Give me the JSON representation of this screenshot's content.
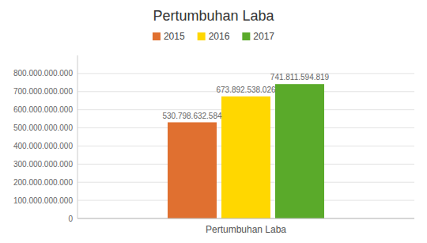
{
  "chart_data": {
    "type": "bar",
    "title": "Pertumbuhan Laba",
    "categories": [
      "Pertumbuhan Laba"
    ],
    "series": [
      {
        "name": "2015",
        "color": "#E07030",
        "values": [
          530798632584
        ],
        "value_labels": [
          "530.798.632.584"
        ]
      },
      {
        "name": "2016",
        "color": "#FFD700",
        "values": [
          673892538026
        ],
        "value_labels": [
          "673.892.538.026"
        ]
      },
      {
        "name": "2017",
        "color": "#5AAA2A",
        "values": [
          741811594819
        ],
        "value_labels": [
          "741.811.594.819"
        ]
      }
    ],
    "ylim": [
      0,
      900000000000
    ],
    "yticks": [
      0,
      {
        "value": 100000000000,
        "label": "100.000.000.000"
      },
      {
        "value": 200000000000,
        "label": "200.000.000.000"
      },
      {
        "value": 300000000000,
        "label": "300.000.000.000"
      },
      {
        "value": 400000000000,
        "label": "400.000.000.000"
      },
      {
        "value": 500000000000,
        "label": "500.000.000.000"
      },
      {
        "value": 600000000000,
        "label": "600.000.000.000"
      },
      {
        "value": 700000000000,
        "label": "700.000.000.000"
      },
      {
        "value": 800000000000,
        "label": "800.000.000.000"
      }
    ],
    "grid": true,
    "legend": "top",
    "data_labels": true
  }
}
